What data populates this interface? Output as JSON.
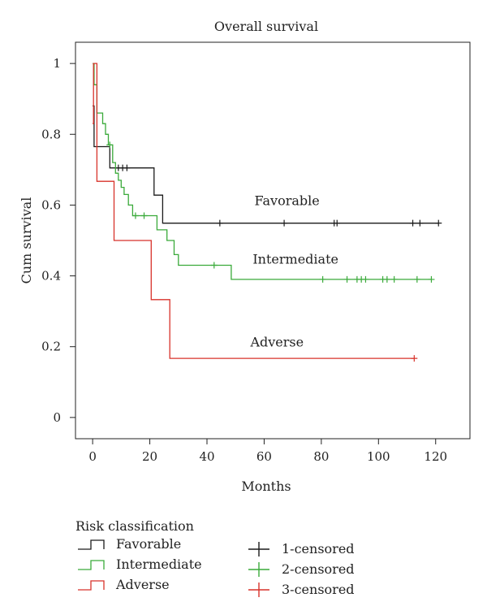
{
  "chart_data": {
    "type": "line",
    "title": "Overall survival",
    "xlabel": "Months",
    "ylabel": "Cum survival",
    "xlim": [
      -6,
      132
    ],
    "ylim": [
      -0.06,
      1.06
    ],
    "xticks": [
      0,
      20,
      40,
      60,
      80,
      100,
      120
    ],
    "yticks": [
      0,
      0.2,
      0.4,
      0.6,
      0.8,
      1
    ],
    "ytick_labels": [
      "0",
      "0.2",
      "0.4",
      "0.6",
      "0.8",
      "1"
    ],
    "grid": false,
    "series": [
      {
        "name": "Favorable",
        "color": "#1a1a1a",
        "step": [
          [
            0,
            0.88
          ],
          [
            0.5,
            0.765
          ],
          [
            6,
            0.705
          ],
          [
            21.5,
            0.628
          ],
          [
            24.5,
            0.549
          ],
          [
            121,
            0.549
          ]
        ],
        "censored_x": [
          9,
          10.5,
          12,
          44.5,
          67,
          84.5,
          85.5,
          112,
          114.5,
          121
        ],
        "censored_y": [
          0.705,
          0.705,
          0.705,
          0.549,
          0.549,
          0.549,
          0.549,
          0.549,
          0.549,
          0.549
        ]
      },
      {
        "name": "Intermediate",
        "color": "#3aaa3a",
        "step": [
          [
            0,
            1
          ],
          [
            0.5,
            0.94
          ],
          [
            1.5,
            0.86
          ],
          [
            3.5,
            0.83
          ],
          [
            4.5,
            0.8
          ],
          [
            5.5,
            0.77
          ],
          [
            7,
            0.72
          ],
          [
            8,
            0.69
          ],
          [
            9,
            0.67
          ],
          [
            10,
            0.65
          ],
          [
            11,
            0.63
          ],
          [
            12.5,
            0.6
          ],
          [
            14,
            0.57
          ],
          [
            22.5,
            0.53
          ],
          [
            26,
            0.5
          ],
          [
            28.5,
            0.46
          ],
          [
            30,
            0.43
          ],
          [
            48.5,
            0.39
          ],
          [
            118.5,
            0.39
          ]
        ],
        "censored_x": [
          6,
          15,
          18,
          42.5,
          80.5,
          89,
          92.5,
          94,
          95.5,
          101.5,
          103,
          105.5,
          113.5,
          118.5
        ],
        "censored_y": [
          0.77,
          0.57,
          0.57,
          0.43,
          0.39,
          0.39,
          0.39,
          0.39,
          0.39,
          0.39,
          0.39,
          0.39,
          0.39,
          0.39
        ]
      },
      {
        "name": "Adverse",
        "color": "#d8322a",
        "step": [
          [
            0,
            0.83
          ],
          [
            0.3,
            1
          ],
          [
            1.5,
            0.667
          ],
          [
            7.5,
            0.5
          ],
          [
            20.5,
            0.333
          ],
          [
            27,
            0.167
          ],
          [
            112.5,
            0.167
          ]
        ],
        "censored_x": [
          112.5
        ],
        "censored_y": [
          0.167
        ]
      }
    ],
    "annotations": [
      {
        "text": "Favorable",
        "x": 68,
        "y": 0.6
      },
      {
        "text": "Intermediate",
        "x": 71,
        "y": 0.435
      },
      {
        "text": "Adverse",
        "x": 64.5,
        "y": 0.2
      }
    ],
    "legend": {
      "title": "Risk classification",
      "placement": "bottom-left",
      "line_items": [
        "Favorable",
        "Intermediate",
        "Adverse"
      ],
      "censor_items": [
        "1-censored",
        "2-censored",
        "3-censored"
      ]
    }
  }
}
